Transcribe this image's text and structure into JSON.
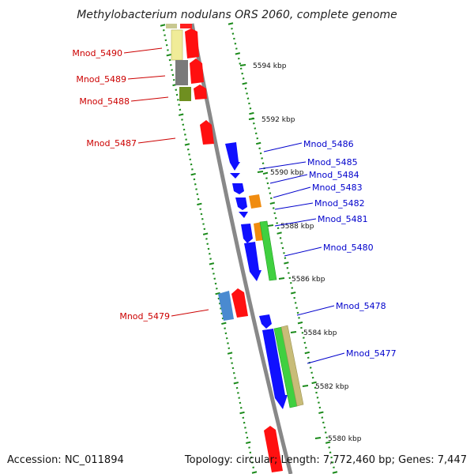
{
  "title": "Methylobacterium nodulans ORS 2060, complete genome",
  "accession": "Accession: NC_011894",
  "topology": "Topology: circular; Length: 7,772,460 bp; Genes: 7,447",
  "colors": {
    "backbone": "#888888",
    "ticks": "#1a8a1a",
    "plus_label": "#cc0000",
    "minus_label": "#0000cc"
  },
  "scale_marks": [
    {
      "label": "5594 kbp",
      "kbp": 5594
    },
    {
      "label": "5592 kbp",
      "kbp": 5592
    },
    {
      "label": "5590 kbp",
      "kbp": 5590
    },
    {
      "label": "5588 kbp",
      "kbp": 5588
    },
    {
      "label": "5586 kbp",
      "kbp": 5586
    },
    {
      "label": "5584 kbp",
      "kbp": 5584
    },
    {
      "label": "5582 kbp",
      "kbp": 5582
    },
    {
      "label": "5580 kbp",
      "kbp": 5580
    }
  ],
  "gene_labels": [
    {
      "name": "Mnod_5490",
      "strand": "plus"
    },
    {
      "name": "Mnod_5489",
      "strand": "plus"
    },
    {
      "name": "Mnod_5488",
      "strand": "plus"
    },
    {
      "name": "Mnod_5487",
      "strand": "plus"
    },
    {
      "name": "Mnod_5479",
      "strand": "plus"
    },
    {
      "name": "Mnod_5486",
      "strand": "minus"
    },
    {
      "name": "Mnod_5485",
      "strand": "minus"
    },
    {
      "name": "Mnod_5484",
      "strand": "minus"
    },
    {
      "name": "Mnod_5483",
      "strand": "minus"
    },
    {
      "name": "Mnod_5482",
      "strand": "minus"
    },
    {
      "name": "Mnod_5481",
      "strand": "minus"
    },
    {
      "name": "Mnod_5480",
      "strand": "minus"
    },
    {
      "name": "Mnod_5478",
      "strand": "minus"
    },
    {
      "name": "Mnod_5477",
      "strand": "minus"
    }
  ]
}
